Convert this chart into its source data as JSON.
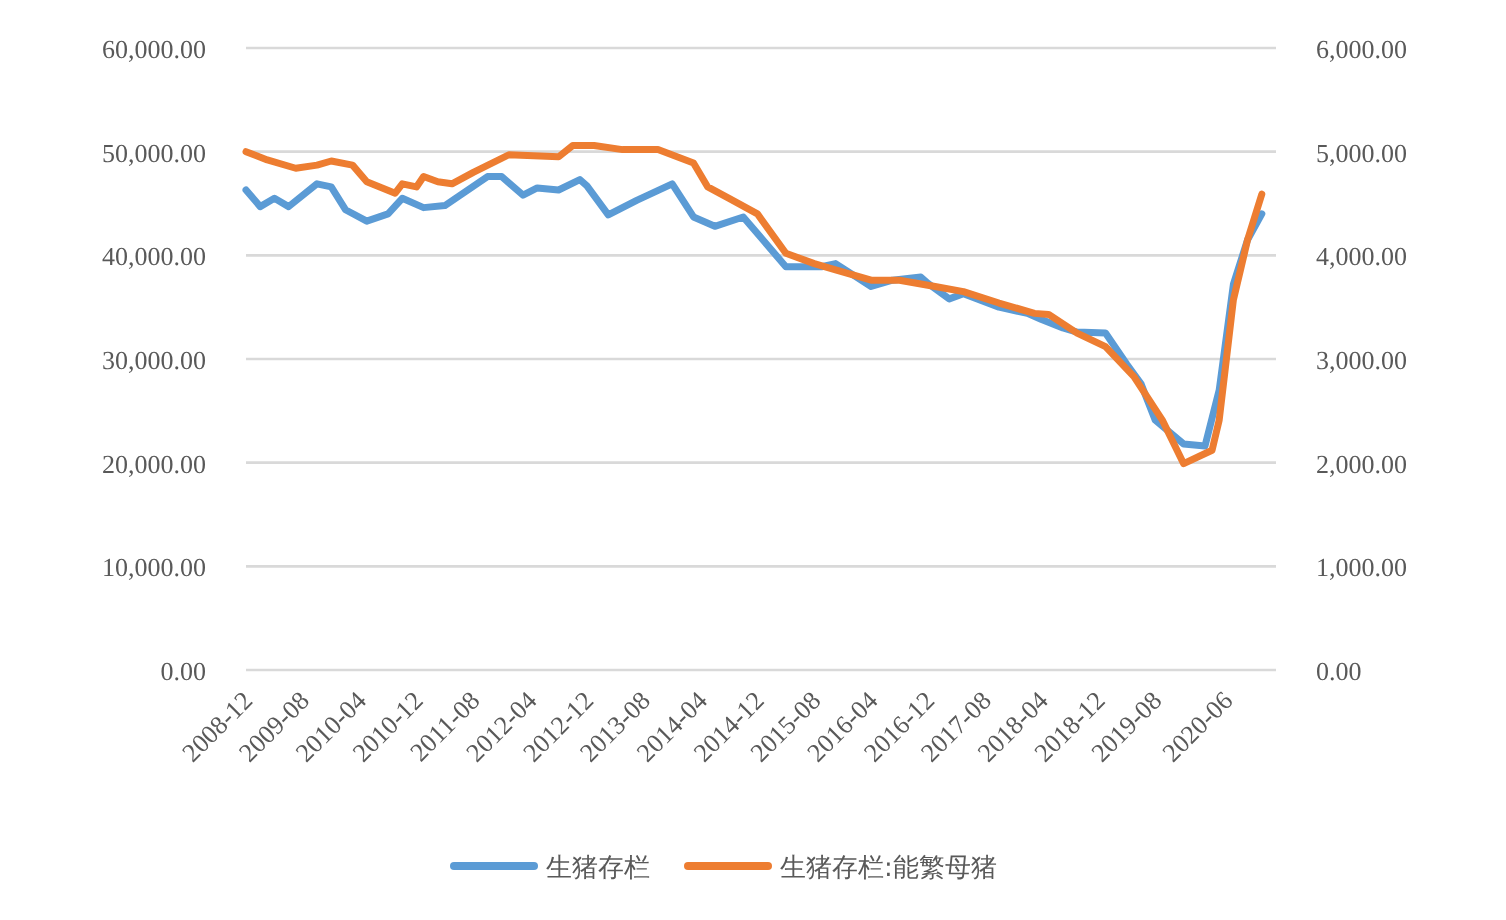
{
  "chart_data": {
    "type": "line",
    "xlim": [
      "2008-12",
      "2021-01"
    ],
    "xticks": [
      "2008-12",
      "2009-08",
      "2010-04",
      "2010-12",
      "2011-08",
      "2012-04",
      "2012-12",
      "2013-08",
      "2014-04",
      "2014-12",
      "2015-08",
      "2016-04",
      "2016-12",
      "2017-08",
      "2018-04",
      "2018-12",
      "2019-08",
      "2020-06"
    ],
    "ylim": [
      0,
      60000
    ],
    "yticks": [
      {
        "value": 0,
        "label": "0.00"
      },
      {
        "value": 10000,
        "label": "10,000.00"
      },
      {
        "value": 20000,
        "label": "20,000.00"
      },
      {
        "value": 30000,
        "label": "30,000.00"
      },
      {
        "value": 40000,
        "label": "40,000.00"
      },
      {
        "value": 50000,
        "label": "50,000.00"
      },
      {
        "value": 60000,
        "label": "60,000.00"
      }
    ],
    "y2lim": [
      0,
      6000
    ],
    "y2ticks": [
      {
        "value": 0,
        "label": "0.00"
      },
      {
        "value": 1000,
        "label": "1,000.00"
      },
      {
        "value": 2000,
        "label": "2,000.00"
      },
      {
        "value": 3000,
        "label": "3,000.00"
      },
      {
        "value": 4000,
        "label": "4,000.00"
      },
      {
        "value": 5000,
        "label": "5,000.00"
      },
      {
        "value": 6000,
        "label": "6,000.00"
      }
    ],
    "grid": "y",
    "legend": "bottom",
    "series": [
      {
        "name": "生猪存栏",
        "color": "#5b9bd5",
        "x": [
          "2008-12",
          "2009-02",
          "2009-04",
          "2009-06",
          "2009-10",
          "2009-12",
          "2010-02",
          "2010-05",
          "2010-08",
          "2010-10",
          "2011-01",
          "2011-04",
          "2011-10",
          "2011-12",
          "2012-03",
          "2012-05",
          "2012-08",
          "2012-11",
          "2012-12",
          "2013-03",
          "2013-07",
          "2013-12",
          "2014-03",
          "2014-06",
          "2014-10",
          "2015-04",
          "2015-09",
          "2015-11",
          "2016-04",
          "2016-07",
          "2016-11",
          "2016-12",
          "2017-03",
          "2017-05",
          "2017-10",
          "2018-02",
          "2018-04",
          "2018-07",
          "2018-09",
          "2019-01",
          "2019-04",
          "2019-06",
          "2019-08",
          "2019-12",
          "2020-03",
          "2020-05",
          "2020-07",
          "2020-09",
          "2020-11"
        ],
        "values": [
          46300,
          44700,
          45500,
          44700,
          46900,
          46600,
          44400,
          43300,
          44000,
          45500,
          44600,
          44800,
          47600,
          47600,
          45800,
          46500,
          46300,
          47300,
          46700,
          43900,
          45300,
          46900,
          43700,
          42800,
          43700,
          38900,
          38900,
          39200,
          37000,
          37600,
          37900,
          37300,
          35800,
          36300,
          35000,
          34400,
          33800,
          33000,
          32600,
          32500,
          29500,
          27600,
          24100,
          21800,
          21600,
          27000,
          37200,
          41500,
          44000
        ]
      },
      {
        "name": "生猪存栏:能繁母猪",
        "color": "#ed7d31",
        "axis": "y2",
        "x": [
          "2008-12",
          "2009-03",
          "2009-07",
          "2009-10",
          "2009-12",
          "2010-03",
          "2010-05",
          "2010-09",
          "2010-10",
          "2010-12",
          "2011-01",
          "2011-03",
          "2011-05",
          "2011-08",
          "2012-01",
          "2012-08",
          "2012-10",
          "2013-01",
          "2013-05",
          "2013-10",
          "2014-03",
          "2014-05",
          "2014-08",
          "2014-12",
          "2015-04",
          "2015-08",
          "2015-11",
          "2016-04",
          "2016-08",
          "2017-01",
          "2017-05",
          "2017-10",
          "2018-03",
          "2018-05",
          "2018-09",
          "2019-01",
          "2019-05",
          "2019-09",
          "2019-12",
          "2020-04",
          "2020-05",
          "2020-06",
          "2020-07",
          "2020-08",
          "2020-09",
          "2020-11"
        ],
        "values": [
          5000,
          4920,
          4840,
          4870,
          4910,
          4870,
          4710,
          4600,
          4690,
          4660,
          4760,
          4710,
          4690,
          4800,
          4970,
          4950,
          5060,
          5060,
          5020,
          5020,
          4890,
          4660,
          4550,
          4400,
          4020,
          3920,
          3860,
          3760,
          3760,
          3700,
          3650,
          3540,
          3440,
          3430,
          3250,
          3120,
          2830,
          2410,
          1990,
          2120,
          2410,
          2990,
          3570,
          3860,
          4150,
          4590
        ]
      }
    ]
  }
}
